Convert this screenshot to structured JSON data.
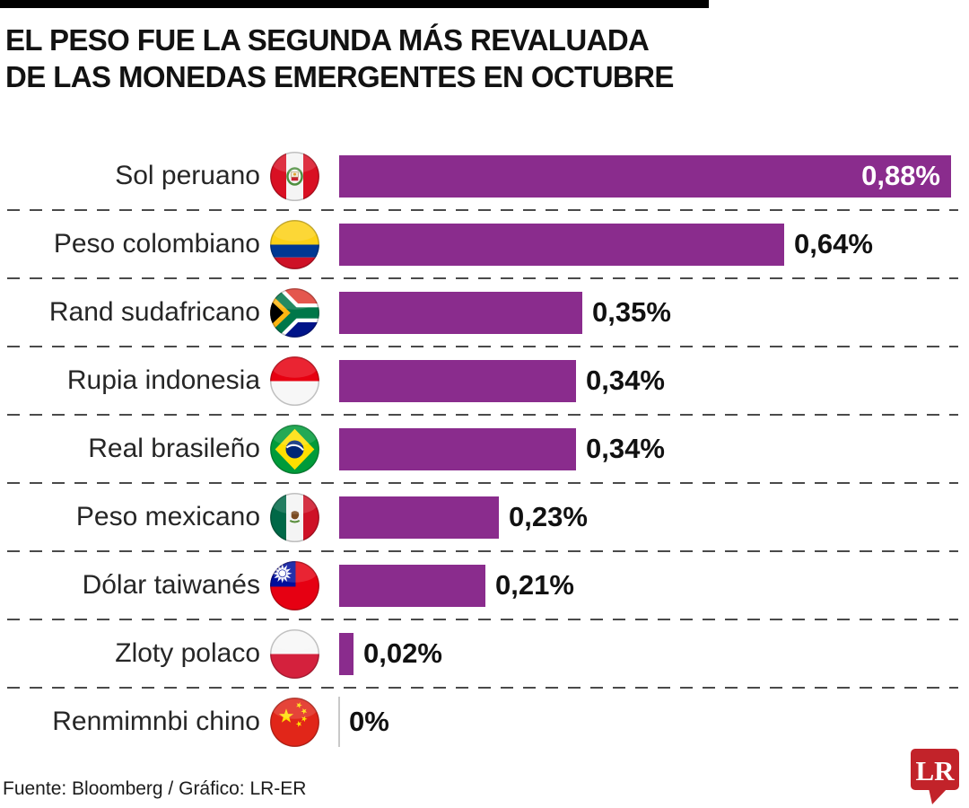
{
  "header": {
    "title_line1": "EL PESO FUE LA SEGUNDA MÁS REVALUADA",
    "title_line2": "DE LAS MONEDAS EMERGENTES EN OCTUBRE"
  },
  "chart_data": {
    "type": "bar",
    "orientation": "horizontal",
    "title": "EL PESO FUE LA SEGUNDA MÁS REVALUADA DE LAS MONEDAS EMERGENTES EN OCTUBRE",
    "unit": "%",
    "decimal_separator": ",",
    "xlim": [
      0,
      0.9
    ],
    "grid": "dashed-row-separators",
    "bar_color": "#8A2C8D",
    "baseline_color": "#C9C9C9",
    "categories": [
      "Sol peruano",
      "Peso colombiano",
      "Rand sudafricano",
      "Rupia indonesia",
      "Real brasileño",
      "Peso mexicano",
      "Dólar taiwanés",
      "Zloty polaco",
      "Renmimnbi chino"
    ],
    "values": [
      0.88,
      0.64,
      0.35,
      0.34,
      0.34,
      0.23,
      0.21,
      0.02,
      0
    ],
    "rows": [
      {
        "label": "Sol peruano",
        "value": 0.88,
        "display": "0,88%",
        "flag": "peru-flag-icon",
        "value_inside_bar": true
      },
      {
        "label": "Peso colombiano",
        "value": 0.64,
        "display": "0,64%",
        "flag": "colombia-flag-icon",
        "value_inside_bar": false
      },
      {
        "label": "Rand sudafricano",
        "value": 0.35,
        "display": "0,35%",
        "flag": "south-africa-flag-icon",
        "value_inside_bar": false
      },
      {
        "label": "Rupia indonesia",
        "value": 0.34,
        "display": "0,34%",
        "flag": "indonesia-flag-icon",
        "value_inside_bar": false
      },
      {
        "label": "Real brasileño",
        "value": 0.34,
        "display": "0,34%",
        "flag": "brazil-flag-icon",
        "value_inside_bar": false
      },
      {
        "label": "Peso mexicano",
        "value": 0.23,
        "display": "0,23%",
        "flag": "mexico-flag-icon",
        "value_inside_bar": false
      },
      {
        "label": "Dólar taiwanés",
        "value": 0.21,
        "display": "0,21%",
        "flag": "taiwan-flag-icon",
        "value_inside_bar": false
      },
      {
        "label": "Zloty polaco",
        "value": 0.02,
        "display": "0,02%",
        "flag": "poland-flag-icon",
        "value_inside_bar": false
      },
      {
        "label": "Renmimnbi chino",
        "value": 0,
        "display": "0%",
        "flag": "china-flag-icon",
        "value_inside_bar": false
      }
    ]
  },
  "footer": {
    "source": "Fuente: Bloomberg / Gráfico: LR-ER",
    "logo": {
      "text": "LR",
      "color": "#C2232A"
    }
  }
}
